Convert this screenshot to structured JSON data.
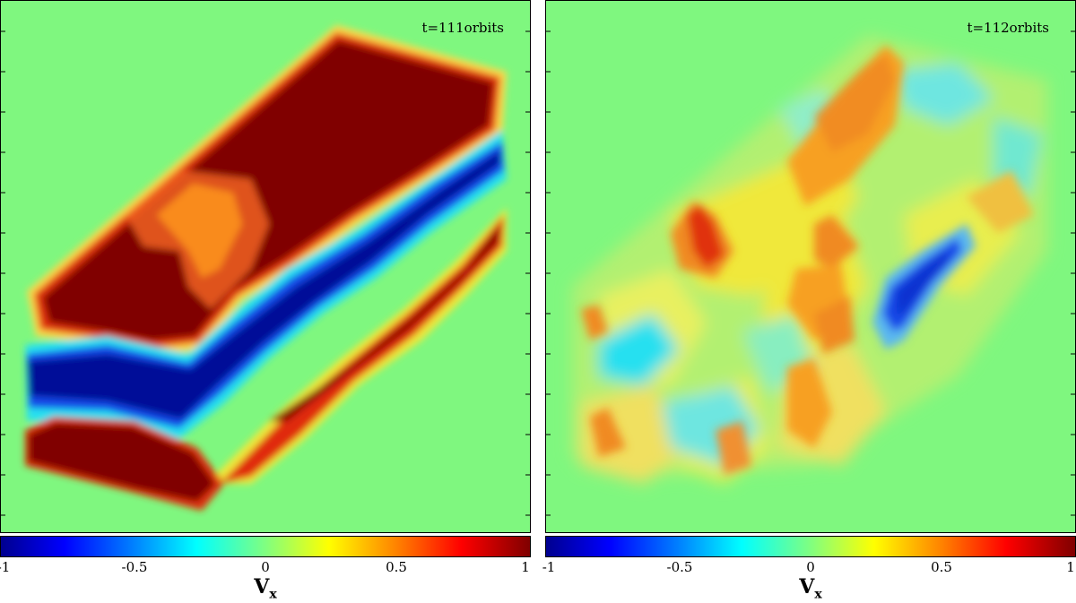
{
  "panels": [
    {
      "time_label": "t=111orbits"
    },
    {
      "time_label": "t=112orbits"
    }
  ],
  "colorbar": {
    "ticks": [
      "-1",
      "-0.5",
      "0",
      "0.5",
      "1"
    ],
    "tick_values": [
      -1,
      -0.5,
      0,
      0.5,
      1
    ],
    "label_main": "V",
    "label_sub": "x",
    "colormap": "jet"
  },
  "colors": {
    "background_field": "#7ff77f",
    "dark_red": "#800000",
    "red": "#e0201a",
    "orange": "#f7a020",
    "yellow": "#f0e83a",
    "cyan": "#28e0f0",
    "light_blue": "#5ab8f0",
    "blue": "#1530e0",
    "dark_blue": "#000a98"
  }
}
